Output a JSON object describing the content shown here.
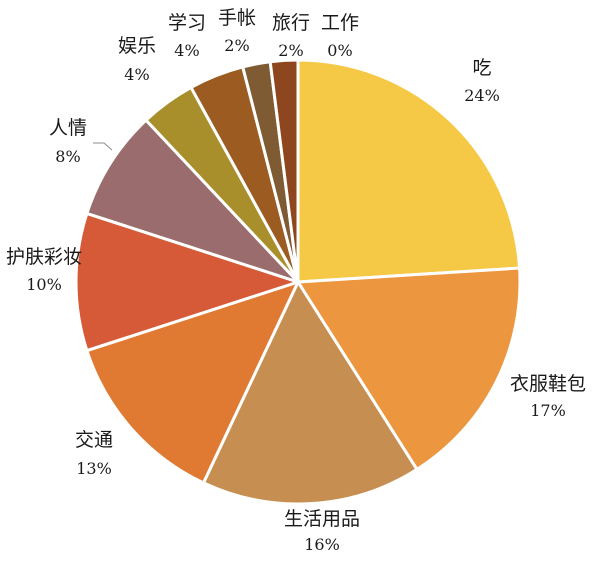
{
  "chart_data": {
    "type": "pie",
    "title": "",
    "legend": "none",
    "direction": "clockwise",
    "start": "top",
    "slices": [
      {
        "label": "吃",
        "value": 24,
        "pct_label": "24%",
        "color": "#F5C945"
      },
      {
        "label": "衣服鞋包",
        "value": 17,
        "pct_label": "17%",
        "color": "#EC963F"
      },
      {
        "label": "生活用品",
        "value": 16,
        "pct_label": "16%",
        "color": "#C68E50"
      },
      {
        "label": "交通",
        "value": 13,
        "pct_label": "13%",
        "color": "#E07A33"
      },
      {
        "label": "护肤彩妆",
        "value": 10,
        "pct_label": "10%",
        "color": "#D65A37"
      },
      {
        "label": "人情",
        "value": 8,
        "pct_label": "8%",
        "color": "#9A6C6D"
      },
      {
        "label": "娱乐",
        "value": 4,
        "pct_label": "4%",
        "color": "#A98F2C"
      },
      {
        "label": "学习",
        "value": 4,
        "pct_label": "4%",
        "color": "#9B5B21"
      },
      {
        "label": "手帐",
        "value": 2,
        "pct_label": "2%",
        "color": "#7F5B34"
      },
      {
        "label": "旅行",
        "value": 2,
        "pct_label": "2%",
        "color": "#8E461E"
      },
      {
        "label": "工作",
        "value": 0,
        "pct_label": "0%",
        "color": "#C77B35"
      }
    ]
  }
}
